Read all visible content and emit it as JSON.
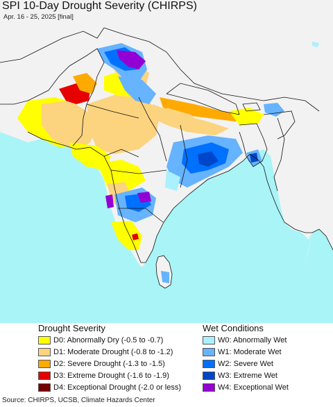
{
  "header": {
    "title": "SPI 10-Day Drought Severity (CHIRPS)",
    "subtitle": "Apr. 16 - 25, 2025 [final]"
  },
  "colors": {
    "land": "#f2f2f2",
    "ocean": "#a9f4f6",
    "border": "#111111"
  },
  "legend": {
    "drought": {
      "heading": "Drought Severity",
      "items": [
        {
          "label": "D0: Abnormally Dry (-0.5 to -0.7)",
          "color": "#ffff00"
        },
        {
          "label": "D1: Moderate Drought (-0.8 to -1.2)",
          "color": "#fcd37f"
        },
        {
          "label": "D2: Severe Drought (-1.3 to -1.5)",
          "color": "#ffaa00"
        },
        {
          "label": "D3: Extreme Drought (-1.6 to -1.9)",
          "color": "#e60000"
        },
        {
          "label": "D4: Exceptional Drought (-2.0 or less)",
          "color": "#730000"
        }
      ]
    },
    "wet": {
      "heading": "Wet Conditions",
      "items": [
        {
          "label": "W0: Abnormally Wet",
          "color": "#aaf0ff"
        },
        {
          "label": "W1: Moderate Wet",
          "color": "#66b3ff"
        },
        {
          "label": "W2: Severe Wet",
          "color": "#0070ff"
        },
        {
          "label": "W3: Extreme Wet",
          "color": "#0046c8"
        },
        {
          "label": "W4: Exceptional Wet",
          "color": "#9400d3"
        }
      ]
    }
  },
  "footer": {
    "source": "Source: CHIRPS, UCSB, Climate Hazards Center"
  }
}
